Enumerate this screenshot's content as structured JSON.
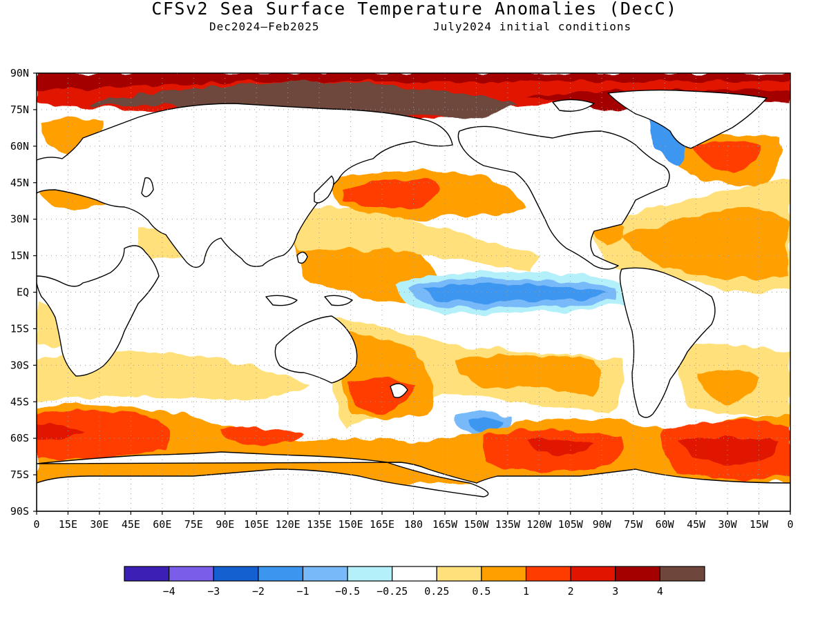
{
  "title": "CFSv2 Sea Surface Temperature Anomalies (DecC)",
  "subtitle_period": "Dec2024–Feb2025",
  "subtitle_ic": "July2024 initial conditions",
  "chart_data": {
    "type": "heatmap",
    "variable": "Sea Surface Temperature Anomalies",
    "units": "DecC",
    "lon_ticks": [
      "0",
      "15E",
      "30E",
      "45E",
      "60E",
      "75E",
      "90E",
      "105E",
      "120E",
      "135E",
      "150E",
      "165E",
      "180",
      "165W",
      "150W",
      "135W",
      "120W",
      "105W",
      "90W",
      "75W",
      "60W",
      "45W",
      "30W",
      "15W",
      "0"
    ],
    "lat_ticks": [
      "90N",
      "75N",
      "60N",
      "45N",
      "30N",
      "15N",
      "EQ",
      "15S",
      "30S",
      "45S",
      "60S",
      "75S",
      "90S"
    ],
    "xlim": [
      0,
      360
    ],
    "ylim": [
      -90,
      90
    ],
    "grid": true,
    "colorbar": {
      "labels": [
        "−4",
        "−3",
        "−2",
        "−1",
        "−0.5",
        "−0.25",
        "0.25",
        "0.5",
        "1",
        "2",
        "3",
        "4"
      ],
      "colors": [
        "#3c1fb4",
        "#7a5de8",
        "#1560d0",
        "#3c96f0",
        "#78b9fa",
        "#b4f0fa",
        "#ffffff",
        "#ffe07a",
        "#ffa000",
        "#ff3c00",
        "#e11400",
        "#a50000",
        "#6e463c"
      ]
    }
  }
}
